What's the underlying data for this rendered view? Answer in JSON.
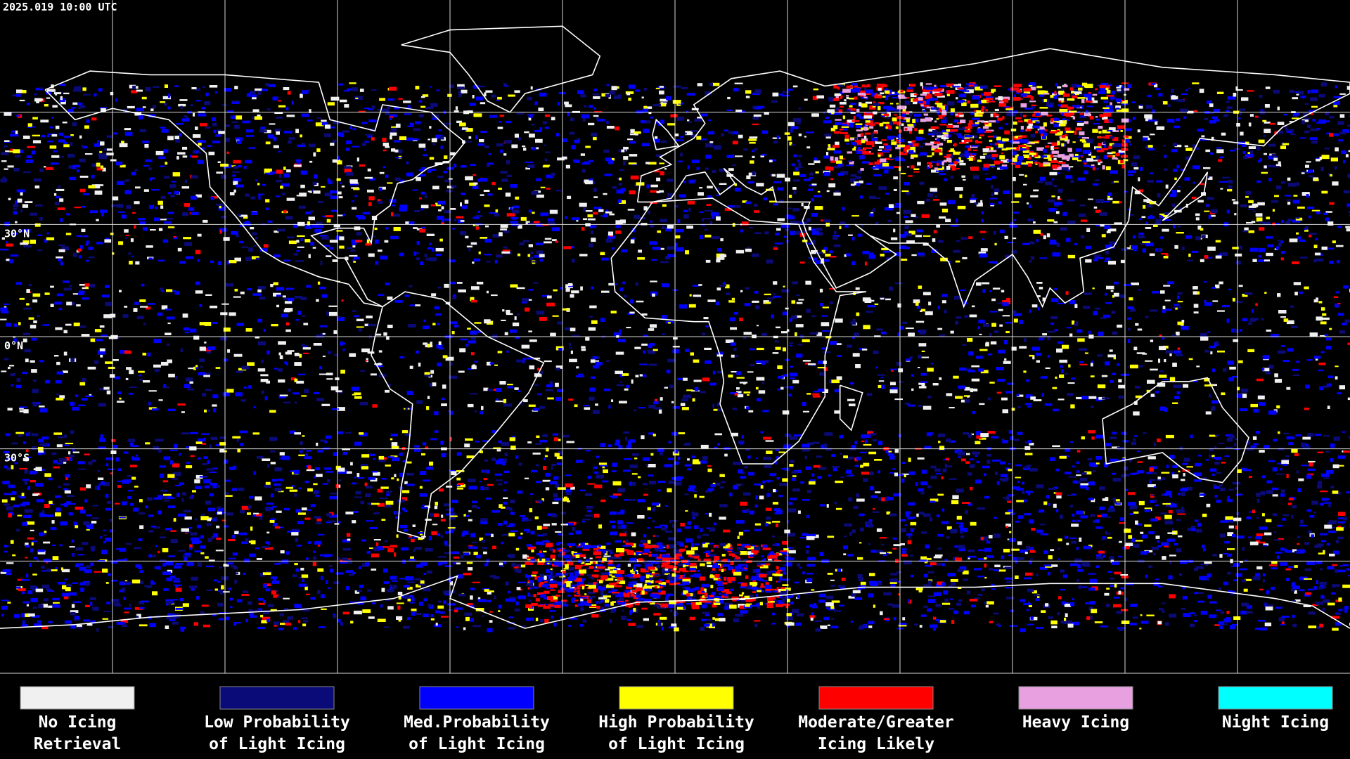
{
  "header": {
    "timestamp": "2025.019 10:00 UTC"
  },
  "latitude_labels": [
    "30°N",
    "0°N",
    "30°S"
  ],
  "legend": [
    {
      "color": "#f0f0f0",
      "label_lines": [
        "No Icing",
        "Retrieval"
      ]
    },
    {
      "color": "#0a0a78",
      "label_lines": [
        "Low Probability",
        "of Light Icing"
      ]
    },
    {
      "color": "#0000ff",
      "label_lines": [
        "Med.Probability",
        "of Light Icing"
      ]
    },
    {
      "color": "#ffff00",
      "label_lines": [
        "High Probability",
        "of Light Icing"
      ]
    },
    {
      "color": "#ff0000",
      "label_lines": [
        "Moderate/Greater",
        "Icing Likely"
      ]
    },
    {
      "color": "#e8a0e0",
      "label_lines": [
        "Heavy Icing"
      ]
    },
    {
      "color": "#00ffff",
      "label_lines": [
        "Night Icing"
      ]
    }
  ]
}
